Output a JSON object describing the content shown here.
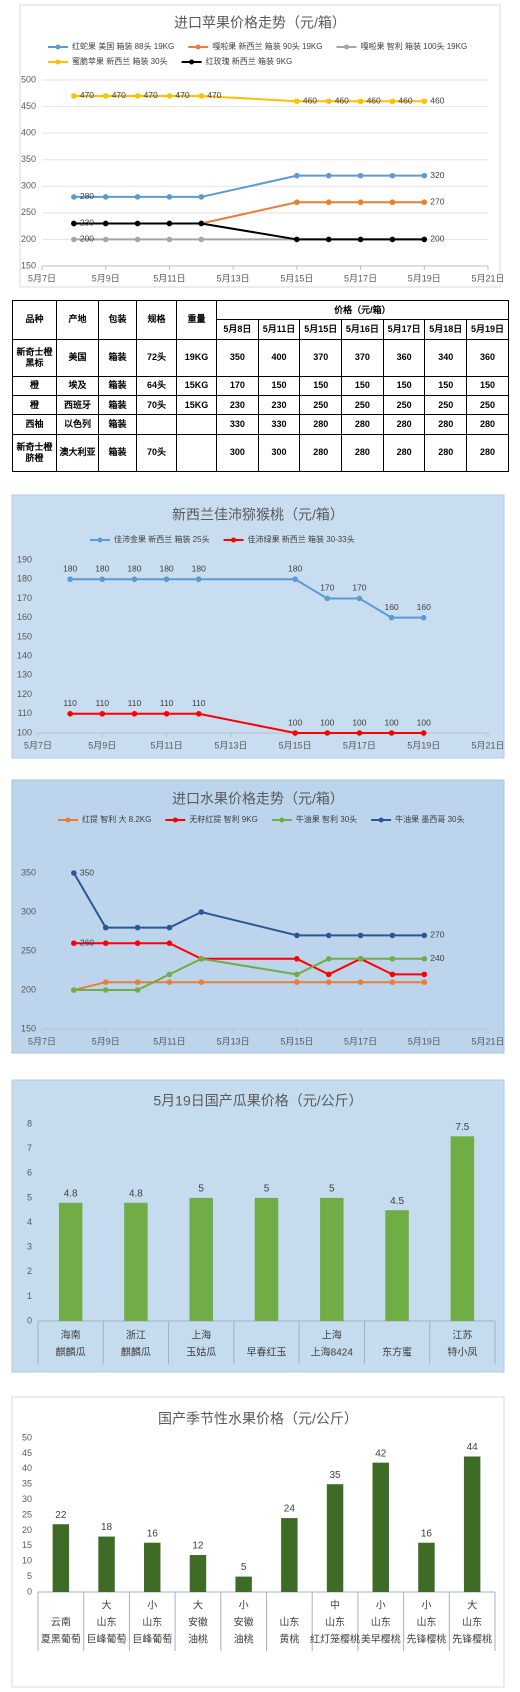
{
  "chart_data": [
    {
      "type": "line",
      "title": "进口苹果价格走势（元/箱）",
      "x": [
        8,
        9,
        10,
        11,
        12,
        15,
        16,
        17,
        18,
        19
      ],
      "xlim": [
        7,
        21
      ],
      "xticks": [
        {
          "value": 7,
          "label": "5月7日"
        },
        {
          "value": 9,
          "label": "5月9日"
        },
        {
          "value": 11,
          "label": "5月11日"
        },
        {
          "value": 13,
          "label": "5月13日"
        },
        {
          "value": 15,
          "label": "5月15日"
        },
        {
          "value": 17,
          "label": "5月17日"
        },
        {
          "value": 19,
          "label": "5月19日"
        },
        {
          "value": 21,
          "label": "5月21日"
        }
      ],
      "ylim": [
        150,
        500
      ],
      "yticks": [
        150,
        200,
        250,
        300,
        350,
        400,
        450,
        500
      ],
      "grid": true,
      "series": [
        {
          "name": "红蛇果 美国 箱装 88头 19KG",
          "color": "#5b9bd5",
          "values": [
            280,
            280,
            280,
            280,
            280,
            320,
            320,
            320,
            320,
            320
          ],
          "data_labels": "ends"
        },
        {
          "name": "嘎啦果 新西兰 箱装 90头 19KG",
          "color": "#ed7d31",
          "values": [
            230,
            230,
            230,
            230,
            230,
            270,
            270,
            270,
            270,
            270
          ],
          "data_labels": "last"
        },
        {
          "name": "嘎啦果 智利 箱装 100头 19KG",
          "color": "#a5a5a5",
          "values": [
            200,
            200,
            200,
            200,
            200,
            200,
            200,
            200,
            200,
            200
          ],
          "data_labels": "first"
        },
        {
          "name": "蜜脆苹果 新西兰 箱装 30头",
          "color": "#ffc000",
          "values": [
            470,
            470,
            470,
            470,
            470,
            460,
            460,
            460,
            460,
            460
          ],
          "data_labels": "all"
        },
        {
          "name": "红玫瑰 新西兰 箱装 9KG",
          "color": "#000000",
          "values": [
            230,
            230,
            230,
            230,
            230,
            200,
            200,
            200,
            200,
            200
          ],
          "data_labels": "ends"
        }
      ]
    },
    {
      "type": "line",
      "title": "新西兰佳沛猕猴桃（元/箱）",
      "x": [
        8,
        9,
        10,
        11,
        12,
        15,
        16,
        17,
        18,
        19
      ],
      "xlim": [
        7,
        21
      ],
      "xticks": [
        {
          "value": 7,
          "label": "5月7日"
        },
        {
          "value": 9,
          "label": "5月9日"
        },
        {
          "value": 11,
          "label": "5月11日"
        },
        {
          "value": 13,
          "label": "5月13日"
        },
        {
          "value": 15,
          "label": "5月15日"
        },
        {
          "value": 17,
          "label": "5月17日"
        },
        {
          "value": 19,
          "label": "5月19日"
        },
        {
          "value": 21,
          "label": "5月21日"
        }
      ],
      "ylim": [
        100,
        190
      ],
      "yticks": [
        100,
        110,
        120,
        130,
        140,
        150,
        160,
        170,
        180,
        190
      ],
      "grid": false,
      "series": [
        {
          "name": "佳沛金果 新西兰 箱装 25头",
          "color": "#5b9bd5",
          "values": [
            180,
            180,
            180,
            180,
            180,
            180,
            170,
            170,
            160,
            160
          ],
          "data_labels": "all"
        },
        {
          "name": "佳沛绿果 新西兰 箱装 30-33头",
          "color": "#ff0000",
          "values": [
            110,
            110,
            110,
            110,
            110,
            100,
            100,
            100,
            100,
            100
          ],
          "data_labels": "all"
        }
      ]
    },
    {
      "type": "line",
      "title": "进口水果价格走势（元/箱）",
      "x": [
        8,
        9,
        10,
        11,
        12,
        15,
        16,
        17,
        18,
        19
      ],
      "xlim": [
        7,
        21
      ],
      "xticks": [
        {
          "value": 7,
          "label": "5月7日"
        },
        {
          "value": 9,
          "label": "5月9日"
        },
        {
          "value": 11,
          "label": "5月11日"
        },
        {
          "value": 13,
          "label": "5月13日"
        },
        {
          "value": 15,
          "label": "5月15日"
        },
        {
          "value": 17,
          "label": "5月17日"
        },
        {
          "value": 19,
          "label": "5月19日"
        },
        {
          "value": 21,
          "label": "5月21日"
        }
      ],
      "ylim": [
        150,
        350
      ],
      "yticks": [
        150,
        200,
        250,
        300,
        350
      ],
      "grid": false,
      "series": [
        {
          "name": "红提 智利 大 8.2KG",
          "color": "#ed7d31",
          "values": [
            200,
            210,
            210,
            210,
            210,
            210,
            210,
            210,
            210,
            210
          ],
          "data_labels": "none"
        },
        {
          "name": "无籽红提 智利 9KG",
          "color": "#ff0000",
          "values": [
            260,
            260,
            260,
            260,
            240,
            240,
            220,
            240,
            220,
            220
          ],
          "data_labels": "first"
        },
        {
          "name": "牛油果 智利 30头",
          "color": "#70ad47",
          "values": [
            200,
            200,
            200,
            220,
            240,
            220,
            240,
            240,
            240,
            240
          ],
          "data_labels": "last"
        },
        {
          "name": "牛油果 墨西哥 30头",
          "color": "#2e5597",
          "values": [
            350,
            280,
            280,
            280,
            300,
            270,
            270,
            270,
            270,
            270
          ],
          "data_labels": "ends"
        }
      ]
    },
    {
      "type": "bar",
      "title": "5月19日国产瓜果价格（元/公斤）",
      "origins": [
        "海南",
        "浙江",
        "上海",
        null,
        "上海",
        null,
        "江苏"
      ],
      "categories": [
        "麒麟瓜",
        "麒麟瓜",
        "玉姑瓜",
        "早春红玉",
        "上海8424",
        "东方蜜",
        "特小凤"
      ],
      "values": [
        4.8,
        4.8,
        5,
        5,
        5,
        4.5,
        7.5
      ],
      "color": "#70ad47",
      "ylim": [
        0,
        8
      ],
      "yticks": [
        0,
        1,
        2,
        3,
        4,
        5,
        6,
        7,
        8
      ],
      "grid": false
    },
    {
      "type": "bar",
      "title": "国产季节性水果价格（元/公斤）",
      "sizes": [
        null,
        "大",
        "小",
        "大",
        "小",
        null,
        "中",
        "小",
        "小",
        "大"
      ],
      "origins": [
        "云南",
        "山东",
        "山东",
        "安徽",
        "安徽",
        "山东",
        "山东",
        "山东",
        "山东",
        "山东"
      ],
      "categories": [
        "夏黑葡萄",
        "巨峰葡萄",
        "巨峰葡萄",
        "油桃",
        "油桃",
        "黄桃",
        "红灯笼樱桃",
        "美早樱桃",
        "先锋樱桃",
        "先锋樱桃"
      ],
      "values": [
        22,
        18,
        16,
        12,
        5,
        24,
        35,
        42,
        16,
        44
      ],
      "color": "#3e6b25",
      "ylim": [
        0,
        50
      ],
      "yticks": [
        0,
        5,
        10,
        15,
        20,
        25,
        30,
        35,
        40,
        45,
        50
      ],
      "grid": false
    }
  ],
  "table": {
    "columns": [
      "品种",
      "产地",
      "包装",
      "规格",
      "重量"
    ],
    "price_header": "价格（元/箱）",
    "dates": [
      "5月8日",
      "5月11日",
      "5月15日",
      "5月16日",
      "5月17日",
      "5月18日",
      "5月19日"
    ],
    "rows": [
      [
        "新奇士橙黑标",
        "美国",
        "箱装",
        "72头",
        "19KG",
        350,
        400,
        370,
        370,
        360,
        340,
        360
      ],
      [
        "橙",
        "埃及",
        "箱装",
        "64头",
        "15KG",
        170,
        150,
        150,
        150,
        150,
        150,
        150
      ],
      [
        "橙",
        "西班牙",
        "箱装",
        "70头",
        "15KG",
        230,
        230,
        250,
        250,
        250,
        250,
        250
      ],
      [
        "西柚",
        "以色列",
        "箱装",
        null,
        null,
        330,
        330,
        280,
        280,
        280,
        280,
        280
      ],
      [
        "新奇士橙脐橙",
        "澳大利亚",
        "箱装",
        "70头",
        null,
        300,
        300,
        280,
        280,
        280,
        280,
        280
      ]
    ]
  }
}
